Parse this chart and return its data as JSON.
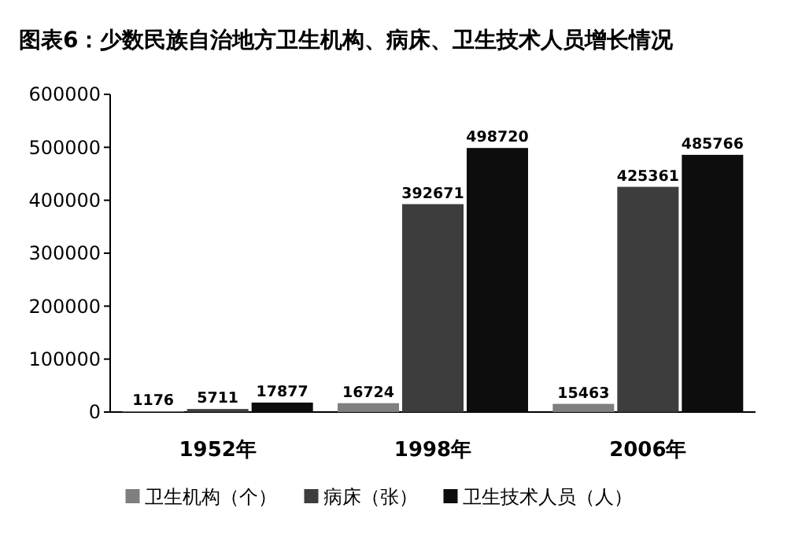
{
  "chart_data": {
    "type": "bar",
    "title": "图表6：少数民族自治地方卫生机构、病床、卫生技术人员增长情况",
    "categories": [
      "1952年",
      "1998年",
      "2006年"
    ],
    "series": [
      {
        "name": "卫生机构（个）",
        "color": "#7f7f7f",
        "values": [
          1176,
          16724,
          15463
        ]
      },
      {
        "name": "病床（张）",
        "color": "#3d3d3d",
        "values": [
          5711,
          392671,
          425361
        ]
      },
      {
        "name": "卫生技术人员（人）",
        "color": "#0d0d0d",
        "values": [
          17877,
          498720,
          485766
        ]
      }
    ],
    "ylim": [
      0,
      600000
    ],
    "yticks": [
      0,
      100000,
      200000,
      300000,
      400000,
      500000,
      600000
    ],
    "data_labels": true,
    "legend": "bottom",
    "grid": false
  }
}
